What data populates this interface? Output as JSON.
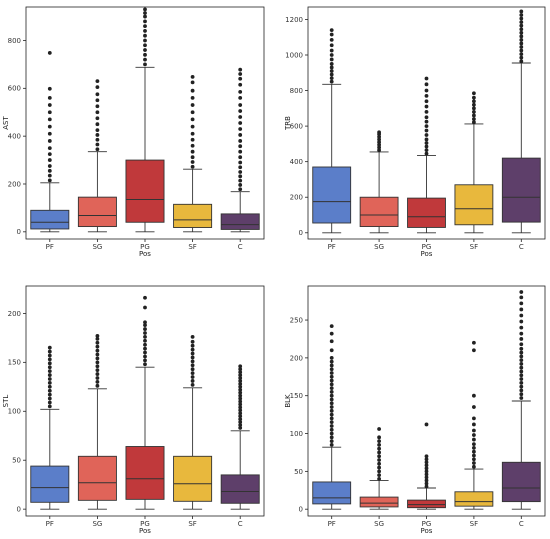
{
  "chart_data": [
    {
      "type": "box",
      "xlabel": "Pos",
      "ylabel": "AST",
      "categories": [
        "PF",
        "SG",
        "PG",
        "SF",
        "C"
      ],
      "colors": [
        "#5b7ec9",
        "#e06459",
        "#c0393b",
        "#e8b83d",
        "#5e3f6a"
      ],
      "ylim": [
        -30,
        940
      ],
      "yticks": [
        0,
        200,
        400,
        600,
        800
      ],
      "boxes": [
        {
          "min": 0,
          "q1": 12,
          "median": 40,
          "q3": 90,
          "max": 205,
          "fliers": [
            215,
            235,
            255,
            275,
            300,
            325,
            350,
            380,
            410,
            440,
            470,
            500,
            530,
            560,
            598,
            748
          ]
        },
        {
          "min": 0,
          "q1": 22,
          "median": 68,
          "q3": 145,
          "max": 335,
          "fliers": [
            345,
            365,
            385,
            405,
            425,
            450,
            475,
            500,
            525,
            550,
            575,
            605,
            630
          ]
        },
        {
          "min": 0,
          "q1": 40,
          "median": 135,
          "q3": 300,
          "max": 688,
          "fliers": [
            700,
            720,
            740,
            760,
            780,
            800,
            820,
            840,
            860,
            880,
            900,
            915,
            930
          ]
        },
        {
          "min": 0,
          "q1": 18,
          "median": 50,
          "q3": 115,
          "max": 262,
          "fliers": [
            272,
            292,
            312,
            335,
            360,
            385,
            410,
            440,
            470,
            500,
            530,
            560,
            590,
            625,
            648
          ]
        },
        {
          "min": 0,
          "q1": 10,
          "median": 30,
          "q3": 75,
          "max": 168,
          "fliers": [
            178,
            196,
            214,
            232,
            250,
            270,
            290,
            312,
            335,
            358,
            380,
            405,
            430,
            455,
            480,
            505,
            530,
            560,
            585,
            615,
            640,
            660,
            678
          ]
        }
      ]
    },
    {
      "type": "box",
      "xlabel": "Pos",
      "ylabel": "TRB",
      "categories": [
        "PF",
        "SG",
        "PG",
        "SF",
        "C"
      ],
      "colors": [
        "#5b7ec9",
        "#e06459",
        "#c0393b",
        "#e8b83d",
        "#5e3f6a"
      ],
      "ylim": [
        -35,
        1270
      ],
      "yticks": [
        0,
        200,
        400,
        600,
        800,
        1000,
        1200
      ],
      "boxes": [
        {
          "min": 0,
          "q1": 55,
          "median": 175,
          "q3": 370,
          "max": 835,
          "fliers": [
            850,
            870,
            890,
            910,
            930,
            950,
            975,
            1000,
            1025,
            1055,
            1085,
            1115,
            1140
          ]
        },
        {
          "min": 0,
          "q1": 35,
          "median": 100,
          "q3": 200,
          "max": 455,
          "fliers": [
            465,
            480,
            495,
            510,
            525,
            540,
            555,
            565
          ]
        },
        {
          "min": 0,
          "q1": 30,
          "median": 90,
          "q3": 195,
          "max": 435,
          "fliers": [
            445,
            465,
            485,
            505,
            525,
            550,
            575,
            600,
            625,
            650,
            680,
            710,
            740,
            770,
            800,
            835,
            868
          ]
        },
        {
          "min": 0,
          "q1": 45,
          "median": 135,
          "q3": 270,
          "max": 612,
          "fliers": [
            622,
            640,
            660,
            680,
            700,
            720,
            740,
            760,
            785
          ]
        },
        {
          "min": 0,
          "q1": 60,
          "median": 200,
          "q3": 420,
          "max": 955,
          "fliers": [
            965,
            985,
            1005,
            1025,
            1045,
            1065,
            1085,
            1105,
            1125,
            1145,
            1165,
            1185,
            1205,
            1225,
            1245
          ]
        }
      ]
    },
    {
      "type": "box",
      "xlabel": "Pos",
      "ylabel": "STL",
      "categories": [
        "PF",
        "SG",
        "PG",
        "SF",
        "C"
      ],
      "colors": [
        "#5b7ec9",
        "#e06459",
        "#c0393b",
        "#e8b83d",
        "#5e3f6a"
      ],
      "ylim": [
        -7,
        228
      ],
      "yticks": [
        0,
        50,
        100,
        150,
        200
      ],
      "boxes": [
        {
          "min": 0,
          "q1": 7,
          "median": 22,
          "q3": 44,
          "max": 102,
          "fliers": [
            105,
            109,
            113,
            117,
            121,
            125,
            129,
            133,
            137,
            141,
            145,
            149,
            153,
            157,
            161,
            165
          ]
        },
        {
          "min": 0,
          "q1": 9,
          "median": 27,
          "q3": 54,
          "max": 123,
          "fliers": [
            126,
            130,
            134,
            138,
            142,
            146,
            150,
            154,
            158,
            162,
            166,
            170,
            174,
            177
          ]
        },
        {
          "min": 0,
          "q1": 10,
          "median": 31,
          "q3": 64,
          "max": 145,
          "fliers": [
            148,
            152,
            156,
            160,
            164,
            168,
            172,
            176,
            180,
            184,
            188,
            191,
            206,
            216
          ]
        },
        {
          "min": 0,
          "q1": 8,
          "median": 26,
          "q3": 54,
          "max": 124,
          "fliers": [
            127,
            131,
            135,
            139,
            143,
            147,
            151,
            155,
            159,
            163,
            167,
            171,
            176
          ]
        },
        {
          "min": 0,
          "q1": 6,
          "median": 18,
          "q3": 35,
          "max": 80,
          "fliers": [
            83,
            86,
            89,
            92,
            95,
            98,
            101,
            104,
            107,
            110,
            113,
            116,
            119,
            122,
            125,
            128,
            131,
            134,
            137,
            140,
            143,
            146
          ]
        }
      ]
    },
    {
      "type": "box",
      "xlabel": "Pos",
      "ylabel": "BLK",
      "categories": [
        "PF",
        "SG",
        "PG",
        "SF",
        "C"
      ],
      "colors": [
        "#5b7ec9",
        "#e06459",
        "#c0393b",
        "#e8b83d",
        "#5e3f6a"
      ],
      "ylim": [
        -9,
        295
      ],
      "yticks": [
        0,
        50,
        100,
        150,
        200,
        250
      ],
      "boxes": [
        {
          "min": 0,
          "q1": 7,
          "median": 15,
          "q3": 36,
          "max": 82,
          "fliers": [
            85,
            90,
            95,
            100,
            105,
            110,
            115,
            120,
            125,
            130,
            135,
            140,
            145,
            150,
            155,
            160,
            165,
            170,
            175,
            180,
            185,
            190,
            195,
            200,
            210,
            222,
            232,
            242
          ]
        },
        {
          "min": 0,
          "q1": 3,
          "median": 8,
          "q3": 16,
          "max": 38,
          "fliers": [
            40,
            45,
            50,
            55,
            60,
            65,
            70,
            75,
            80,
            85,
            90,
            95,
            106
          ]
        },
        {
          "min": 0,
          "q1": 2,
          "median": 6,
          "q3": 12,
          "max": 28,
          "fliers": [
            30,
            34,
            38,
            42,
            46,
            50,
            54,
            58,
            62,
            66,
            70,
            112
          ]
        },
        {
          "min": 0,
          "q1": 4,
          "median": 10,
          "q3": 23,
          "max": 53,
          "fliers": [
            56,
            61,
            66,
            71,
            76,
            81,
            86,
            92,
            98,
            104,
            112,
            120,
            135,
            150,
            210,
            220
          ]
        },
        {
          "min": 0,
          "q1": 10,
          "median": 28,
          "q3": 62,
          "max": 143,
          "fliers": [
            147,
            152,
            157,
            162,
            167,
            172,
            177,
            182,
            187,
            192,
            197,
            202,
            207,
            212,
            218,
            225,
            232,
            240,
            248,
            256,
            264,
            272,
            280,
            287
          ]
        }
      ]
    }
  ]
}
